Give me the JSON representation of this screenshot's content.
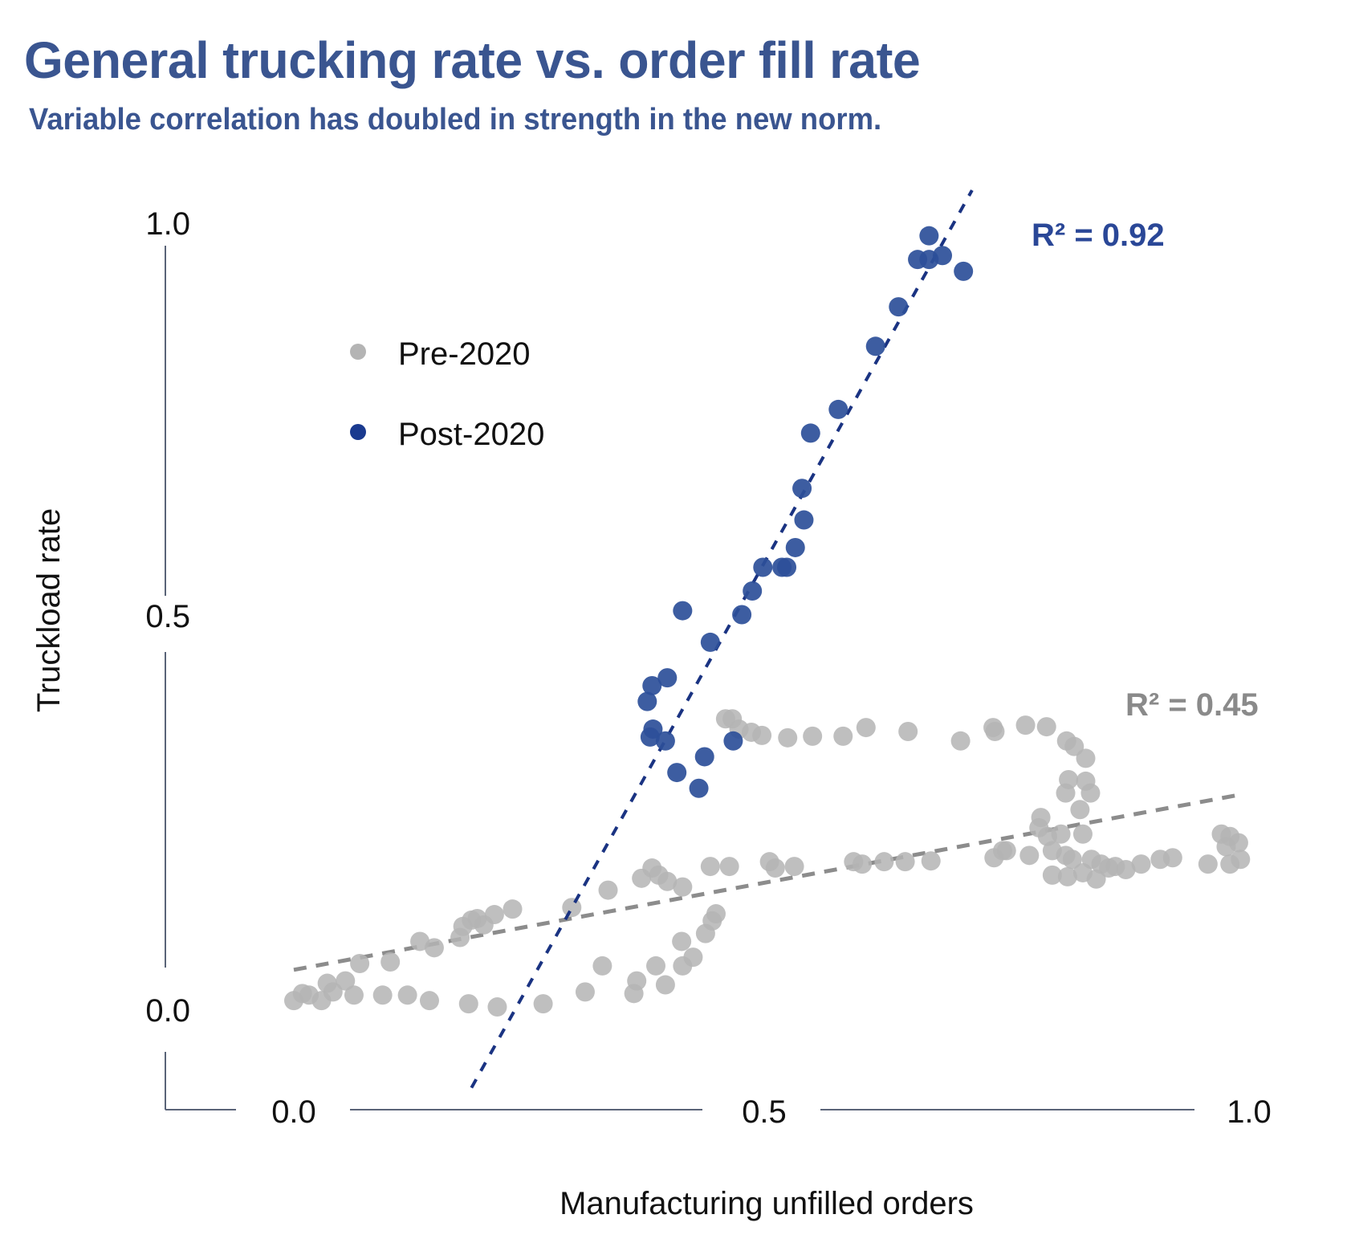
{
  "header": {
    "title": "General trucking rate vs. order fill rate",
    "subtitle": "Variable correlation has doubled in strength in the new norm."
  },
  "chart_data": {
    "type": "scatter",
    "title": "General trucking rate vs. order fill rate",
    "subtitle": "Variable correlation has doubled in strength in the new norm.",
    "xlabel": "Manufacturing unfilled orders",
    "ylabel": "Truckload rate",
    "xlim": [
      0.0,
      1.0
    ],
    "ylim": [
      0.0,
      1.0
    ],
    "x_ticks": [
      "0.0",
      "0.5",
      "1.0"
    ],
    "y_ticks": [
      "0.0",
      "0.5",
      "1.0"
    ],
    "grid": false,
    "legend": {
      "placement": "top-left",
      "entries": [
        "Pre-2020",
        "Post-2020"
      ]
    },
    "colors": {
      "pre": "#b4b4b4",
      "post": "#2d4f99",
      "pre_trend": "#8c8c8c",
      "post_trend": "#1a3382",
      "r2_post": "#2a4797",
      "r2_pre": "#8a8a8a",
      "axis": "#5a6478"
    },
    "annotations": [
      {
        "series": "Post-2020",
        "text": "R² = 0.92",
        "x": 0.92,
        "y": 0.98
      },
      {
        "series": "Pre-2020",
        "text": "R² = 0.45",
        "x": 1.0,
        "y": 0.385
      }
    ],
    "series": [
      {
        "name": "Pre-2020",
        "trendline": {
          "slope": 0.224,
          "intercept": 0.05,
          "x_range": [
            0.0,
            0.985
          ],
          "r2": 0.45
        },
        "points": [
          [
            0.0,
            0.011
          ],
          [
            0.009,
            0.02
          ],
          [
            0.016,
            0.018
          ],
          [
            0.029,
            0.011
          ],
          [
            0.035,
            0.033
          ],
          [
            0.041,
            0.022
          ],
          [
            0.054,
            0.036
          ],
          [
            0.063,
            0.018
          ],
          [
            0.069,
            0.058
          ],
          [
            0.093,
            0.018
          ],
          [
            0.101,
            0.06
          ],
          [
            0.119,
            0.018
          ],
          [
            0.132,
            0.086
          ],
          [
            0.142,
            0.011
          ],
          [
            0.147,
            0.078
          ],
          [
            0.174,
            0.091
          ],
          [
            0.177,
            0.105
          ],
          [
            0.186,
            0.113
          ],
          [
            0.192,
            0.115
          ],
          [
            0.199,
            0.107
          ],
          [
            0.21,
            0.12
          ],
          [
            0.229,
            0.127
          ],
          [
            0.183,
            0.007
          ],
          [
            0.213,
            0.003
          ],
          [
            0.261,
            0.007
          ],
          [
            0.291,
            0.129
          ],
          [
            0.305,
            0.022
          ],
          [
            0.329,
            0.151
          ],
          [
            0.323,
            0.055
          ],
          [
            0.356,
            0.02
          ],
          [
            0.359,
            0.036
          ],
          [
            0.379,
            0.055
          ],
          [
            0.389,
            0.031
          ],
          [
            0.407,
            0.055
          ],
          [
            0.406,
            0.086
          ],
          [
            0.418,
            0.066
          ],
          [
            0.431,
            0.096
          ],
          [
            0.438,
            0.112
          ],
          [
            0.442,
            0.121
          ],
          [
            0.364,
            0.166
          ],
          [
            0.375,
            0.179
          ],
          [
            0.382,
            0.17
          ],
          [
            0.391,
            0.162
          ],
          [
            0.407,
            0.155
          ],
          [
            0.436,
            0.181
          ],
          [
            0.456,
            0.181
          ],
          [
            0.498,
            0.187
          ],
          [
            0.504,
            0.179
          ],
          [
            0.524,
            0.181
          ],
          [
            0.586,
            0.187
          ],
          [
            0.595,
            0.184
          ],
          [
            0.618,
            0.187
          ],
          [
            0.64,
            0.187
          ],
          [
            0.667,
            0.188
          ],
          [
            0.746,
            0.201
          ],
          [
            0.452,
            0.368
          ],
          [
            0.459,
            0.368
          ],
          [
            0.466,
            0.355
          ],
          [
            0.479,
            0.351
          ],
          [
            0.49,
            0.347
          ],
          [
            0.517,
            0.344
          ],
          [
            0.543,
            0.346
          ],
          [
            0.575,
            0.346
          ],
          [
            0.599,
            0.357
          ],
          [
            0.643,
            0.352
          ],
          [
            0.698,
            0.34
          ],
          [
            0.732,
            0.357
          ],
          [
            0.734,
            0.352
          ],
          [
            0.766,
            0.36
          ],
          [
            0.788,
            0.358
          ],
          [
            0.809,
            0.34
          ],
          [
            0.817,
            0.333
          ],
          [
            0.829,
            0.318
          ],
          [
            0.811,
            0.291
          ],
          [
            0.829,
            0.289
          ],
          [
            0.808,
            0.274
          ],
          [
            0.834,
            0.274
          ],
          [
            0.823,
            0.253
          ],
          [
            0.782,
            0.243
          ],
          [
            0.78,
            0.23
          ],
          [
            0.789,
            0.219
          ],
          [
            0.803,
            0.222
          ],
          [
            0.826,
            0.222
          ],
          [
            0.794,
            0.201
          ],
          [
            0.808,
            0.195
          ],
          [
            0.815,
            0.19
          ],
          [
            0.835,
            0.19
          ],
          [
            0.826,
            0.173
          ],
          [
            0.794,
            0.17
          ],
          [
            0.81,
            0.168
          ],
          [
            0.84,
            0.165
          ],
          [
            0.853,
            0.179
          ],
          [
            0.871,
            0.177
          ],
          [
            0.887,
            0.184
          ],
          [
            0.907,
            0.19
          ],
          [
            0.92,
            0.192
          ],
          [
            0.957,
            0.184
          ],
          [
            0.98,
            0.184
          ],
          [
            0.991,
            0.19
          ],
          [
            0.971,
            0.222
          ],
          [
            0.98,
            0.219
          ],
          [
            0.989,
            0.211
          ],
          [
            0.976,
            0.206
          ],
          [
            0.742,
            0.201
          ],
          [
            0.733,
            0.192
          ],
          [
            0.77,
            0.195
          ],
          [
            0.845,
            0.184
          ],
          [
            0.86,
            0.181
          ]
        ]
      },
      {
        "name": "Post-2020",
        "trendline": {
          "slope": 2.17,
          "intercept": -0.503,
          "x_range": [
            0.186,
            0.71
          ],
          "r2": 0.92
        },
        "points": [
          [
            0.665,
            0.98
          ],
          [
            0.653,
            0.95
          ],
          [
            0.665,
            0.95
          ],
          [
            0.679,
            0.955
          ],
          [
            0.701,
            0.935
          ],
          [
            0.633,
            0.89
          ],
          [
            0.609,
            0.84
          ],
          [
            0.57,
            0.76
          ],
          [
            0.541,
            0.73
          ],
          [
            0.532,
            0.66
          ],
          [
            0.534,
            0.62
          ],
          [
            0.525,
            0.585
          ],
          [
            0.491,
            0.56
          ],
          [
            0.511,
            0.56
          ],
          [
            0.516,
            0.56
          ],
          [
            0.48,
            0.53
          ],
          [
            0.469,
            0.5
          ],
          [
            0.407,
            0.505
          ],
          [
            0.436,
            0.465
          ],
          [
            0.391,
            0.42
          ],
          [
            0.375,
            0.41
          ],
          [
            0.37,
            0.39
          ],
          [
            0.376,
            0.355
          ],
          [
            0.373,
            0.345
          ],
          [
            0.389,
            0.34
          ],
          [
            0.46,
            0.34
          ],
          [
            0.43,
            0.32
          ],
          [
            0.401,
            0.3
          ],
          [
            0.424,
            0.28
          ]
        ]
      }
    ]
  }
}
